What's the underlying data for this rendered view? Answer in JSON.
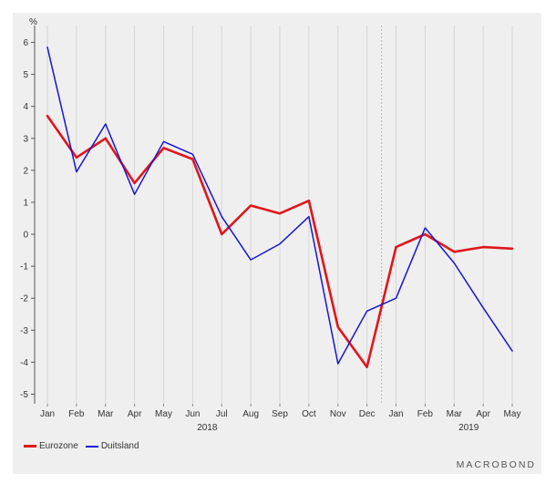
{
  "chart_data": {
    "type": "line",
    "unit": "%",
    "categories": [
      "Jan",
      "Feb",
      "Mar",
      "Apr",
      "May",
      "Jun",
      "Jul",
      "Aug",
      "Sep",
      "Oct",
      "Nov",
      "Dec",
      "Jan",
      "Feb",
      "Mar",
      "Apr",
      "May"
    ],
    "year_labels": [
      {
        "label": "2018",
        "index": 5.5
      },
      {
        "label": "2019",
        "index": 14.5
      }
    ],
    "year_boundary_index": 11.5,
    "ylim": [
      -5.3,
      6.3
    ],
    "yticks": [
      6,
      5,
      4,
      3,
      2,
      1,
      0,
      -1,
      -2,
      -3,
      -4,
      -5
    ],
    "series": [
      {
        "name": "Eurozone",
        "color": "#e0161b",
        "values": [
          3.7,
          2.4,
          3.0,
          1.6,
          2.7,
          2.35,
          0.0,
          0.9,
          0.65,
          1.05,
          -2.9,
          -4.15,
          -0.4,
          0.0,
          -0.55,
          -0.4,
          -0.45
        ]
      },
      {
        "name": "Duitsland",
        "color": "#1a14d6",
        "values": [
          5.85,
          1.95,
          3.45,
          1.25,
          2.9,
          2.5,
          0.55,
          -0.8,
          -0.3,
          0.55,
          -4.05,
          -2.4,
          -2.0,
          0.2,
          -0.9,
          -2.3,
          -3.65
        ]
      }
    ],
    "legend_position": "bottom-left",
    "grid": "vertical"
  },
  "brand": "MACROBOND"
}
